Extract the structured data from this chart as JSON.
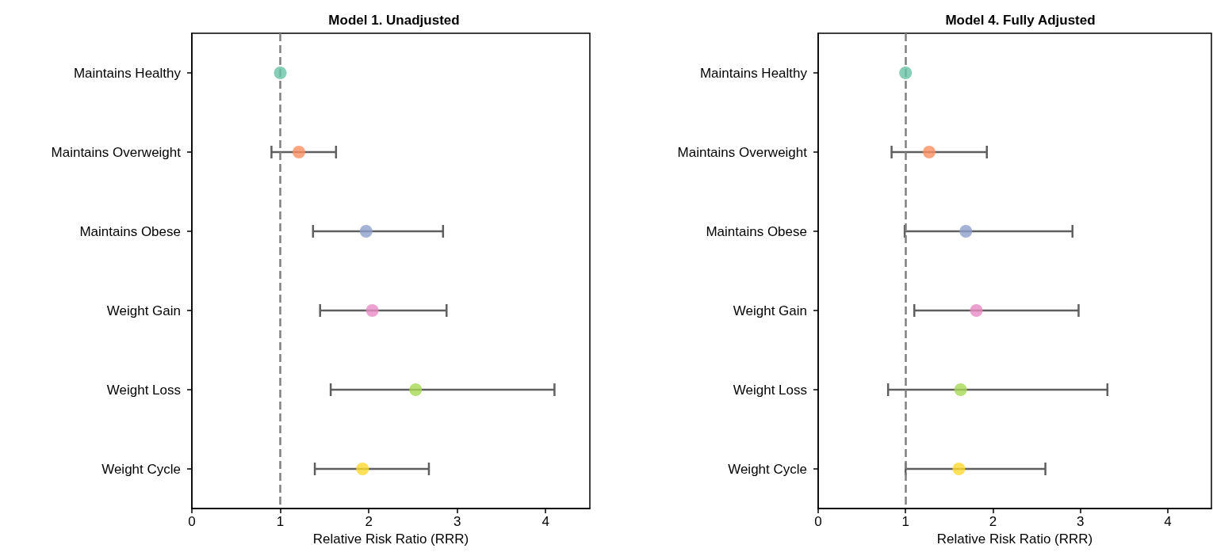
{
  "chart_data": [
    {
      "type": "scatter",
      "title": "Model 1. Unadjusted",
      "xlabel": "Relative Risk Ratio (RRR)",
      "categories": [
        "Maintains Healthy",
        "Maintains Overweight",
        "Maintains Obese",
        "Weight Gain",
        "Weight Loss",
        "Weight Cycle"
      ],
      "values": [
        1.0,
        1.21,
        1.97,
        2.04,
        2.53,
        1.93
      ],
      "errors": [
        null,
        [
          0.9,
          1.63
        ],
        [
          1.37,
          2.84
        ],
        [
          1.45,
          2.88
        ],
        [
          1.57,
          4.1
        ],
        [
          1.39,
          2.68
        ]
      ],
      "colors": [
        "#66c2a5",
        "#fc8d62",
        "#8da0cb",
        "#e78ac3",
        "#a6d854",
        "#ffd92f"
      ],
      "orientation": "horizontal",
      "xlim": [
        0,
        4.5
      ],
      "xticks": [
        0,
        1,
        2,
        3,
        4
      ],
      "ref_lines": [
        {
          "axis": "x",
          "value": 1,
          "color": "#808080",
          "line_style": "dashed"
        }
      ],
      "marker": "circle",
      "grid": false,
      "legend": false
    },
    {
      "type": "scatter",
      "title": "Model 4. Fully Adjusted",
      "xlabel": "Relative Risk Ratio (RRR)",
      "categories": [
        "Maintains Healthy",
        "Maintains Overweight",
        "Maintains Obese",
        "Weight Gain",
        "Weight Loss",
        "Weight Cycle"
      ],
      "values": [
        1.0,
        1.27,
        1.69,
        1.81,
        1.63,
        1.61
      ],
      "errors": [
        null,
        [
          0.84,
          1.93
        ],
        [
          0.99,
          2.91
        ],
        [
          1.1,
          2.98
        ],
        [
          0.8,
          3.31
        ],
        [
          1.0,
          2.6
        ]
      ],
      "colors": [
        "#66c2a5",
        "#fc8d62",
        "#8da0cb",
        "#e78ac3",
        "#a6d854",
        "#ffd92f"
      ],
      "orientation": "horizontal",
      "xlim": [
        0,
        4.5
      ],
      "xticks": [
        0,
        1,
        2,
        3,
        4
      ],
      "ref_lines": [
        {
          "axis": "x",
          "value": 1,
          "color": "#808080",
          "line_style": "dashed"
        }
      ],
      "marker": "circle",
      "grid": false,
      "legend": false
    }
  ]
}
